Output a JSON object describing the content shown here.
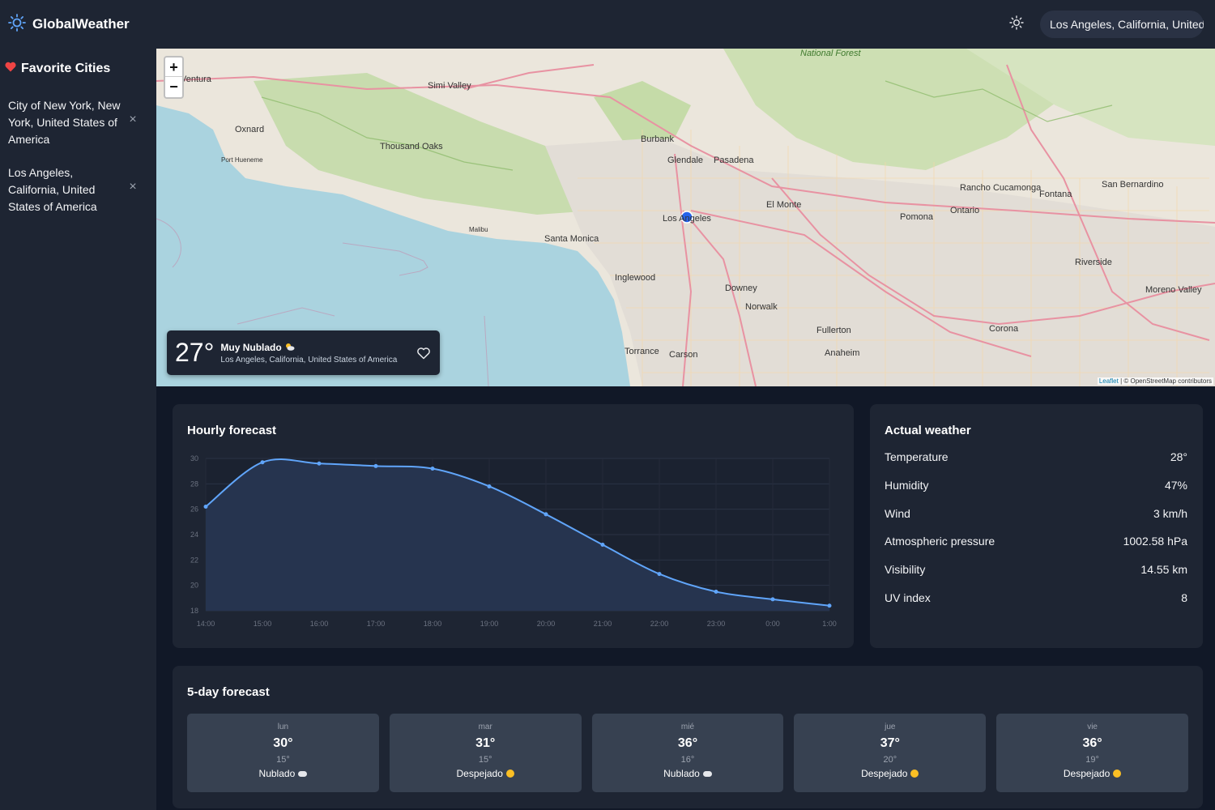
{
  "app": {
    "title": "GlobalWeather",
    "logo_icon": "sun-icon"
  },
  "header": {
    "theme_icon": "sun-icon",
    "location": "Los Angeles, California, United States of America"
  },
  "sidebar": {
    "title": "Favorite Cities",
    "items": [
      {
        "label": "City of New York, New York, United States of America"
      },
      {
        "label": "Los Angeles, California, United States of America"
      }
    ]
  },
  "map": {
    "zoom_in": "+",
    "zoom_out": "−",
    "labels": {
      "ventura": "Ventura",
      "oxnard": "Oxnard",
      "simi": "Simi Valley",
      "thousand": "Thousand Oaks",
      "burbank": "Burbank",
      "glendale": "Glendale",
      "pasadena": "Pasadena",
      "la": "Los Angeles",
      "santamonica": "Santa Monica",
      "inglewood": "Inglewood",
      "torrance": "Torrance",
      "downey": "Downey",
      "norwalk": "Norwalk",
      "fullerton": "Fullerton",
      "anaheim": "Anaheim",
      "pomona": "Pomona",
      "ontario": "Ontario",
      "rancho": "Rancho Cucamonga",
      "fontana": "Fontana",
      "sanbern": "San Bernardino",
      "riverside": "Riverside",
      "corona": "Corona",
      "moreno": "Moreno Valley",
      "elmonte": "El Monte",
      "carson": "Carson",
      "national": "National Forest",
      "malibu": "Malibu",
      "porthueneme": "Port Hueneme"
    },
    "card": {
      "temp": "27°",
      "condition": "Muy Nublado",
      "location": "Los Angeles, California, United States of America"
    },
    "attribution_leaflet": "Leaflet",
    "attribution_osm": "| © OpenStreetMap contributors"
  },
  "hourly": {
    "title": "Hourly forecast"
  },
  "chart_data": {
    "type": "area",
    "x": [
      "14:00",
      "15:00",
      "16:00",
      "17:00",
      "18:00",
      "19:00",
      "20:00",
      "21:00",
      "22:00",
      "23:00",
      "0:00",
      "1:00"
    ],
    "values": [
      26.2,
      29.7,
      29.6,
      29.4,
      29.2,
      27.8,
      25.6,
      23.2,
      20.9,
      19.5,
      18.9,
      18.4
    ],
    "ylim": [
      18,
      30
    ],
    "yticks": [
      18,
      20,
      22,
      24,
      26,
      28,
      30
    ],
    "grid": true,
    "colors": {
      "line": "#60a5fa",
      "fill": "#26344f"
    }
  },
  "actual": {
    "title": "Actual weather",
    "rows": [
      {
        "label": "Temperature",
        "value": "28°"
      },
      {
        "label": "Humidity",
        "value": "47%"
      },
      {
        "label": "Wind",
        "value": "3 km/h"
      },
      {
        "label": "Atmospheric pressure",
        "value": "1002.58 hPa"
      },
      {
        "label": "Visibility",
        "value": "14.55 km"
      },
      {
        "label": "UV index",
        "value": "8"
      }
    ]
  },
  "forecast": {
    "title": "5-day forecast",
    "days": [
      {
        "day": "lun",
        "max": "30°",
        "min": "15°",
        "cond": "Nublado",
        "icon": "cloud-icon"
      },
      {
        "day": "mar",
        "max": "31°",
        "min": "15°",
        "cond": "Despejado",
        "icon": "sun-icon"
      },
      {
        "day": "mié",
        "max": "36°",
        "min": "16°",
        "cond": "Nublado",
        "icon": "cloud-icon"
      },
      {
        "day": "jue",
        "max": "37°",
        "min": "20°",
        "cond": "Despejado",
        "icon": "sun-icon"
      },
      {
        "day": "vie",
        "max": "36°",
        "min": "19°",
        "cond": "Despejado",
        "icon": "sun-icon"
      }
    ]
  },
  "colors": {
    "accent": "#60a5fa",
    "heart": "#ef4444",
    "bg": "#111827",
    "panel": "#1e2533"
  }
}
